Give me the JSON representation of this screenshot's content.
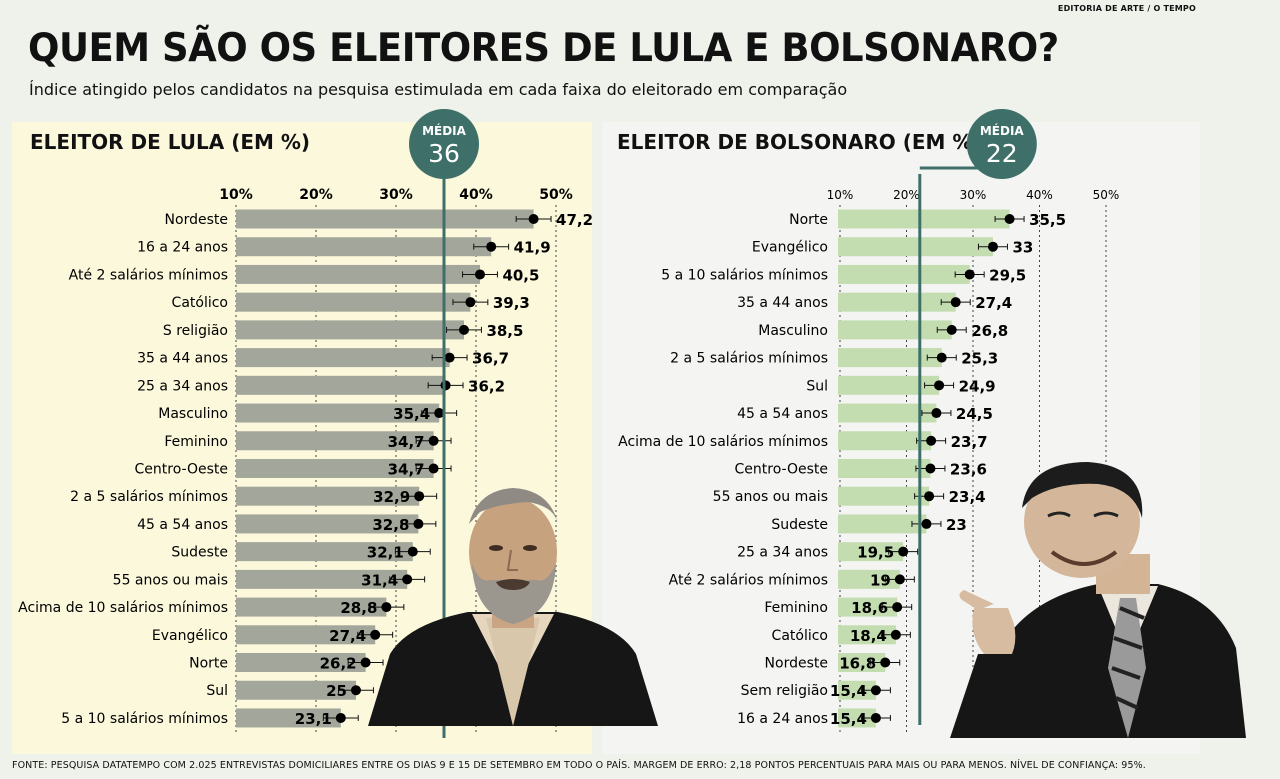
{
  "credit": "EDITORIA DE ARTE / O TEMPO",
  "title": "QUEM SÃO OS ELEITORES DE LULA E BOLSONARO?",
  "subtitle": "Índice atingido pelos candidatos na pesquisa estimulada em cada faixa do eleitorado em comparação",
  "footer": "FONTE: PESQUISA DATATEMPO COM 2.025 ENTREVISTAS DOMICILIARES ENTRE OS DIAS 9 E 15 DE SETEMBRO EM TODO O PAÍS. MARGEM DE ERRO: 2,18 PONTOS PERCENTUAIS PARA MAIS OU PARA MENOS. NÍVEL DE CONFIANÇA: 95%.",
  "colors": {
    "lula_bar": "#a3a69a",
    "bols_bar": "#c3dcb0",
    "media_badge": "#3e6f68",
    "point": "#000000"
  },
  "chart_data": [
    {
      "type": "bar",
      "id": "lula",
      "title": "ELEITOR DE LULA (EM %)",
      "media_label": "MÉDIA",
      "media_value": 36,
      "media_text": "36",
      "ticks": [
        10,
        20,
        30,
        40,
        50
      ],
      "tick_labels": [
        "10%",
        "20%",
        "30%",
        "40%",
        "50%"
      ],
      "xlim": [
        10,
        50
      ],
      "error_margin": 2.18,
      "categories": [
        "Nordeste",
        "16 a 24 anos",
        "Até 2 salários mínimos",
        "Católico",
        "S religião",
        "35 a 44 anos",
        "25 a 34 anos",
        "Masculino",
        "Feminino",
        "Centro-Oeste",
        "2 a 5 salários mínimos",
        "45 a 54 anos",
        "Sudeste",
        "55 anos ou mais",
        "Acima de 10 salários mínimos",
        "Evangélico",
        "Norte",
        "Sul",
        "5 a 10 salários mínimos"
      ],
      "values": [
        47.2,
        41.9,
        40.5,
        39.3,
        38.5,
        36.7,
        36.2,
        35.4,
        34.7,
        34.7,
        32.9,
        32.8,
        32.1,
        31.4,
        28.8,
        27.4,
        26.2,
        25,
        23.1
      ],
      "value_labels": [
        "47,2",
        "41,9",
        "40,5",
        "39,3",
        "38,5",
        "36,7",
        "36,2",
        "35,4",
        "34,7",
        "34,7",
        "32,9",
        "32,8",
        "32,1",
        "31,4",
        "28,8",
        "27,4",
        "26,2",
        "25",
        "23,1"
      ]
    },
    {
      "type": "bar",
      "id": "bols",
      "title": "ELEITOR DE BOLSONARO (EM %)",
      "media_label": "MÉDIA",
      "media_value": 22,
      "media_text": "22",
      "ticks": [
        10,
        20,
        30,
        40,
        50
      ],
      "tick_labels": [
        "10%",
        "20%",
        "30%",
        "40%",
        "50%"
      ],
      "xlim": [
        10,
        50
      ],
      "error_margin": 2.18,
      "categories": [
        "Norte",
        "Evangélico",
        "5 a 10 salários mínimos",
        "35 a 44 anos",
        "Masculino",
        "2 a 5 salários mínimos",
        "Sul",
        "45 a 54 anos",
        "Acima de 10 salários mínimos",
        "Centro-Oeste",
        "55 anos ou mais",
        "Sudeste",
        "25 a 34 anos",
        "Até 2 salários mínimos",
        "Feminino",
        "Católico",
        "Nordeste",
        "Sem religião",
        "16 a 24 anos"
      ],
      "values": [
        35.5,
        33,
        29.5,
        27.4,
        26.8,
        25.3,
        24.9,
        24.5,
        23.7,
        23.6,
        23.4,
        23,
        19.5,
        19,
        18.6,
        18.4,
        16.8,
        15.4,
        15.4
      ],
      "value_labels": [
        "35,5",
        "33",
        "29,5",
        "27,4",
        "26,8",
        "25,3",
        "24,9",
        "24,5",
        "23,7",
        "23,6",
        "23,4",
        "23",
        "19,5",
        "19",
        "18,6",
        "18,4",
        "16,8",
        "15,4",
        "15,4"
      ]
    }
  ]
}
